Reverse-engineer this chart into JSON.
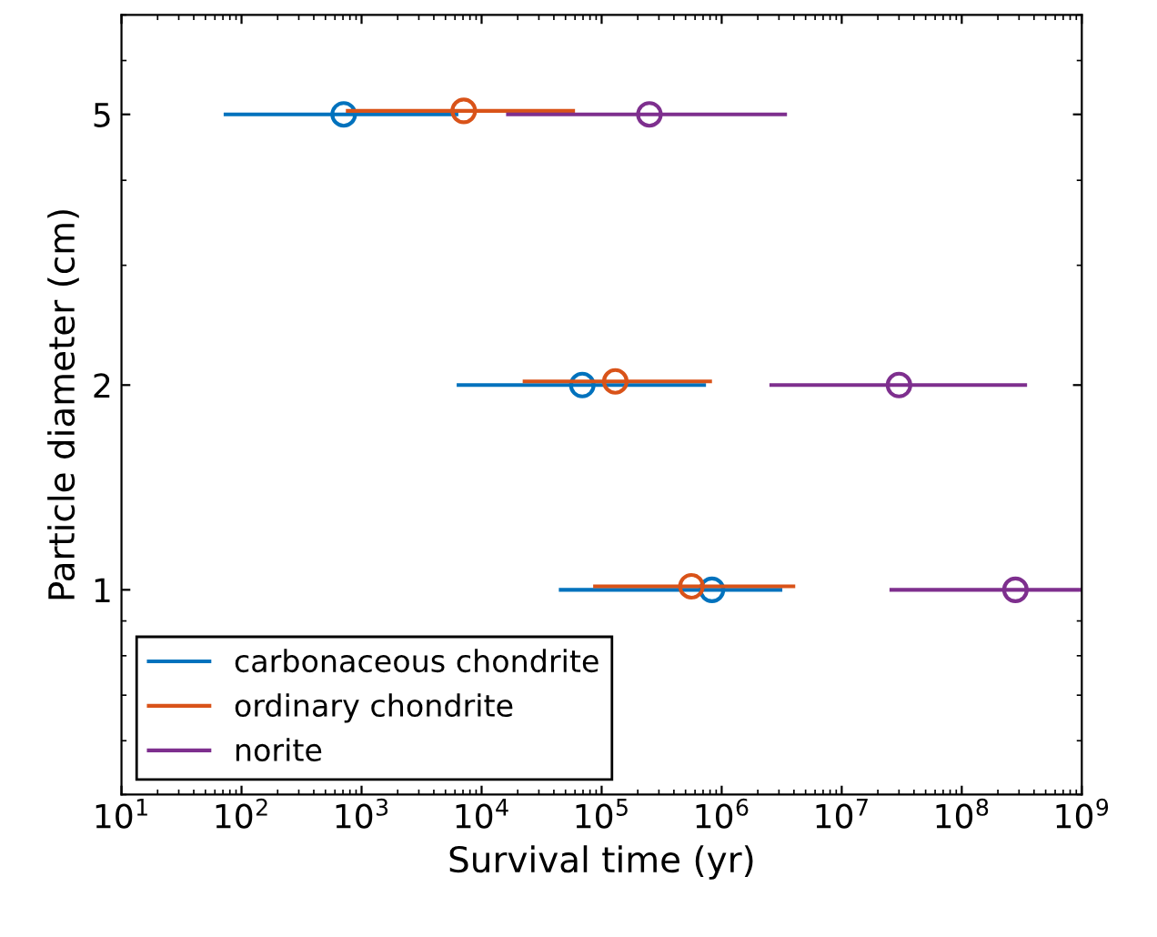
{
  "chart_data": {
    "type": "scatter",
    "xlabel": "Survival time (yr)",
    "ylabel": "Particle diameter (cm)",
    "log": "xy",
    "marker": "circle",
    "grid": false,
    "legend": "bottom left",
    "xlim": [
      10,
      1000000000
    ],
    "ylim": [
      0.5,
      7
    ],
    "xticks": [
      {
        "value": 10,
        "label": "10$^{1}$"
      },
      {
        "value": 100,
        "label": "10$^{2}$"
      },
      {
        "value": 1000,
        "label": "10$^{3}$"
      },
      {
        "value": 10000,
        "label": "10$^{4}$"
      },
      {
        "value": 100000,
        "label": "10$^{5}$"
      },
      {
        "value": 1000000,
        "label": "10$^{6}$"
      },
      {
        "value": 10000000,
        "label": "10$^{7}$"
      },
      {
        "value": 100000000,
        "label": "10$^{8}$"
      },
      {
        "value": 1000000000,
        "label": "10$^{9}$"
      }
    ],
    "yticks": [
      1,
      2,
      5
    ],
    "series": [
      {
        "name": "carbonaceous chondrite",
        "color": "#0072bd",
        "x": [
          710,
          69000,
          830000
        ],
        "values": [
          5,
          2,
          1
        ],
        "xerrors": [
          [
            71,
            6400
          ],
          [
            6200,
            740000
          ],
          [
            44000,
            3200000
          ]
        ]
      },
      {
        "name": "ordinary chondrite",
        "color": "#d95319",
        "x": [
          7100,
          130000,
          560000
        ],
        "values": [
          5.06,
          2.025,
          1.012
        ],
        "xerrors": [
          [
            740,
            60000
          ],
          [
            22000,
            830000
          ],
          [
            85000,
            4100000
          ]
        ]
      },
      {
        "name": "norite",
        "color": "#7e2f8e",
        "x": [
          250000,
          30000000,
          280000000
        ],
        "values": [
          5,
          2,
          1
        ],
        "xerrors": [
          [
            16000,
            3500000
          ],
          [
            2500000,
            350000000
          ],
          [
            25000000,
            1000000000
          ]
        ]
      }
    ]
  }
}
